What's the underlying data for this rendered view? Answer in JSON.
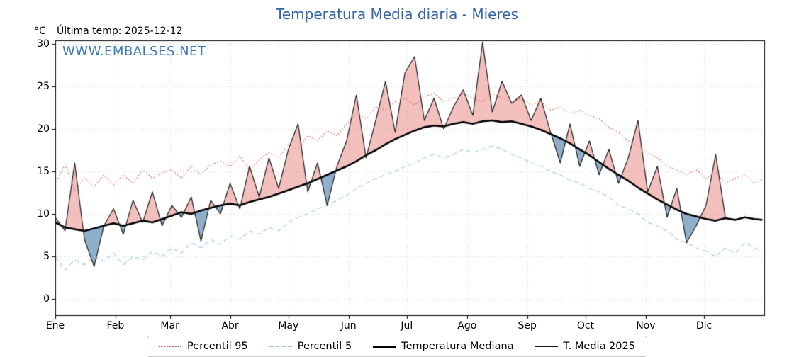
{
  "header": {
    "title": "Temperatura Media diaria - Mieres",
    "y_unit": "°C",
    "last_temp": "Última temp: 2025-12-12",
    "watermark": "WWW.EMBALSES.NET"
  },
  "theme": {
    "title_color": "#3465a4",
    "watermark_color": "#3a78b5",
    "grid_color": "rgba(180,180,180,0.6)",
    "fill_above_color": "rgba(222,60,50,0.32)",
    "fill_below_color": "rgba(52,110,160,0.55)"
  },
  "legend": {
    "items": [
      {
        "label": "Percentil 95",
        "color": "#d9534f",
        "line": "dotted",
        "thickness": 2
      },
      {
        "label": "Percentil 5",
        "color": "#9ecae1",
        "line": "dashed",
        "thickness": 2
      },
      {
        "label": "Temperatura Mediana",
        "color": "#000000",
        "line": "solid",
        "thickness": 3
      },
      {
        "label": "T. Media 2025",
        "color": "#1a1a1a",
        "line": "solid",
        "thickness": 1
      }
    ]
  },
  "chart_data": {
    "type": "line",
    "title": "Temperatura Media diaria - Mieres",
    "ylabel": "°C",
    "ylim": [
      -1.9,
      30.4
    ],
    "y_ticks": [
      0,
      5,
      10,
      15,
      20,
      25,
      30
    ],
    "grid": true,
    "legend_position": "bottom",
    "days_per_year": 365,
    "x_step_days": 5,
    "months": [
      "Ene",
      "Feb",
      "Mar",
      "Abr",
      "May",
      "Jun",
      "Jul",
      "Ago",
      "Sep",
      "Oct",
      "Nov",
      "Dic"
    ],
    "month_start_day": [
      0,
      31,
      59,
      90,
      120,
      151,
      181,
      212,
      243,
      273,
      304,
      334
    ],
    "series": [
      {
        "name": "Percentil 95",
        "color": "#d9534f",
        "dash": "dotted",
        "width": 1.1,
        "values": [
          13.5,
          15.8,
          12.8,
          14.2,
          13.2,
          14.6,
          13.4,
          14.6,
          13.6,
          15.2,
          14.2,
          14.8,
          15.2,
          14.2,
          15.6,
          14.6,
          15.8,
          16.2,
          15.6,
          16.8,
          15.2,
          16.4,
          17.2,
          16.6,
          18.2,
          17.6,
          19.2,
          18.6,
          19.8,
          19.2,
          20.6,
          21.8,
          21.2,
          22.6,
          22.2,
          23.2,
          23.6,
          22.8,
          23.8,
          24.2,
          23.2,
          23.6,
          24.2,
          23.6,
          23.2,
          24.2,
          23.6,
          23.2,
          23.6,
          22.8,
          23.2,
          22.2,
          22.6,
          21.8,
          22.2,
          21.6,
          21.2,
          20.2,
          19.6,
          18.6,
          18.0,
          17.2,
          16.6,
          15.6,
          15.2,
          14.6,
          15.2,
          14.2,
          14.8,
          13.6,
          14.2,
          14.6,
          13.6,
          14.0
        ]
      },
      {
        "name": "Percentil 5",
        "color": "#9ecae1",
        "dash": "dashed",
        "width": 1.1,
        "values": [
          5.0,
          3.4,
          4.6,
          4.0,
          5.0,
          4.4,
          5.4,
          4.0,
          5.0,
          4.6,
          5.6,
          5.0,
          6.0,
          5.4,
          6.6,
          6.0,
          7.0,
          6.4,
          7.4,
          7.0,
          8.0,
          7.6,
          8.4,
          8.0,
          9.0,
          9.6,
          10.0,
          10.6,
          11.0,
          11.6,
          12.2,
          13.0,
          13.6,
          14.2,
          14.6,
          15.0,
          15.6,
          16.0,
          16.6,
          17.0,
          16.6,
          17.0,
          17.6,
          17.2,
          17.6,
          18.0,
          17.6,
          17.0,
          16.6,
          16.0,
          15.6,
          15.0,
          14.6,
          14.0,
          13.6,
          13.0,
          12.6,
          12.0,
          11.0,
          10.6,
          10.0,
          9.0,
          8.6,
          8.0,
          7.0,
          6.6,
          6.0,
          5.6,
          5.0,
          6.0,
          5.4,
          6.6,
          6.0,
          5.6
        ]
      },
      {
        "name": "Temperatura Mediana",
        "color": "#000000",
        "dash": "solid",
        "width": 2.6,
        "values": [
          9.0,
          8.4,
          8.2,
          8.0,
          8.3,
          8.6,
          8.9,
          8.6,
          8.9,
          9.2,
          9.0,
          9.4,
          9.8,
          10.2,
          10.0,
          10.4,
          10.7,
          11.0,
          11.2,
          11.0,
          11.4,
          11.7,
          12.0,
          12.4,
          12.8,
          13.2,
          13.6,
          14.1,
          14.6,
          15.1,
          15.6,
          16.2,
          16.9,
          17.5,
          18.2,
          18.8,
          19.3,
          19.8,
          20.2,
          20.4,
          20.3,
          20.6,
          20.8,
          20.6,
          20.9,
          21.0,
          20.8,
          20.9,
          20.6,
          20.3,
          19.9,
          19.4,
          18.9,
          18.3,
          17.6,
          16.9,
          16.1,
          15.3,
          14.6,
          13.9,
          13.1,
          12.4,
          11.7,
          11.1,
          10.5,
          10.0,
          9.7,
          9.4,
          9.2,
          9.5,
          9.3,
          9.6,
          9.4,
          9.3
        ]
      },
      {
        "name": "T. Media 2025",
        "color": "#1a1a1a",
        "dash": "solid",
        "width": 1.2,
        "values": [
          9.6,
          8.0,
          16.0,
          7.0,
          3.8,
          8.6,
          10.6,
          7.6,
          11.6,
          9.0,
          12.6,
          8.6,
          11.0,
          9.6,
          12.0,
          6.8,
          11.6,
          10.0,
          13.6,
          10.6,
          15.6,
          12.0,
          16.6,
          13.0,
          17.6,
          20.6,
          12.6,
          16.0,
          11.0,
          15.6,
          18.6,
          24.0,
          16.6,
          21.0,
          25.6,
          19.6,
          26.6,
          28.5,
          21.0,
          23.6,
          20.0,
          22.6,
          24.6,
          21.6,
          30.2,
          22.0,
          25.6,
          23.0,
          24.0,
          21.0,
          23.6,
          19.6,
          16.0,
          20.6,
          15.6,
          18.6,
          14.6,
          17.6,
          13.6,
          16.6,
          21.0,
          12.6,
          15.6,
          9.6,
          13.0,
          6.6,
          8.6,
          11.0,
          17.0,
          9.6,
          null,
          null,
          null,
          null
        ]
      }
    ],
    "fill": {
      "between": [
        "T. Media 2025",
        "Temperatura Mediana"
      ],
      "above_color": "rgba(222,60,50,0.32)",
      "below_color": "rgba(52,110,160,0.55)",
      "last_data_day": 345
    }
  }
}
